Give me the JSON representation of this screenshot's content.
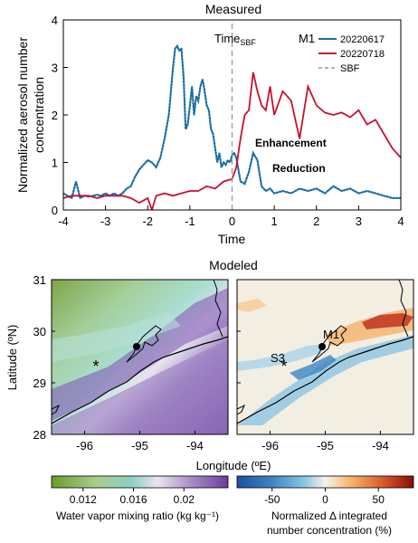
{
  "top_panel": {
    "title": "Measured",
    "ylabel_line1": "Normalized aerosol number",
    "ylabel_line2": "concentration",
    "xlabel": "Time",
    "time_label": "Time",
    "time_sub": "SBF",
    "site": "M1",
    "enhancement_label": "Enhancement",
    "reduction_label": "Reduction",
    "enhancement_color": "#c8102e",
    "reduction_color": "#1a6ea5"
  },
  "bottom_panels": {
    "title": "Modeled",
    "ylabel": "Latitude (ºN)",
    "xlabel": "Longitude (ºE)",
    "left": {
      "star_label": "",
      "cbar_ticks": [
        "0.012",
        "0.016",
        "0.02"
      ],
      "cbar_label": "Water vapor mixing ratio (kg kg⁻¹)",
      "cbar_colors": [
        "#6b9b2a",
        "#a9cd8a",
        "#8ccfc2",
        "#e9e4ef",
        "#a48ac4",
        "#6a3d9a"
      ]
    },
    "right": {
      "star_label": "S3",
      "dot_label": "M1",
      "cbar_ticks": [
        "-50",
        "0",
        "50"
      ],
      "cbar_label_line1": "Normalized Δ integrated",
      "cbar_label_line2": "number concentration (%)",
      "cbar_colors": [
        "#1f4e9c",
        "#3d86c4",
        "#8cc4e2",
        "#f5f2ea",
        "#f5b26b",
        "#d9582a",
        "#8b0a0a"
      ]
    }
  },
  "chart_data": [
    {
      "type": "line",
      "title": "Measured",
      "xlabel": "Time",
      "ylabel": "Normalized aerosol number concentration",
      "xlim": [
        -4,
        4
      ],
      "ylim": [
        0,
        4
      ],
      "xticks": [
        -4,
        -3,
        -2,
        -1,
        0,
        1,
        2,
        3,
        4
      ],
      "yticks": [
        0,
        1,
        2,
        3,
        4
      ],
      "legend_position": "top-right",
      "series": [
        {
          "name": "20220617",
          "style": "dotted",
          "color": "#1a6ea5",
          "x": [
            -4.0,
            -3.9,
            -3.8,
            -3.7,
            -3.6,
            -3.5,
            -3.4,
            -3.3,
            -3.2,
            -3.1,
            -3.0,
            -2.9,
            -2.8,
            -2.7,
            -2.6,
            -2.5,
            -2.4,
            -2.3,
            -2.2,
            -2.1,
            -2.0,
            -1.9,
            -1.8,
            -1.7,
            -1.6,
            -1.5,
            -1.4,
            -1.35,
            -1.3,
            -1.25,
            -1.2,
            -1.15,
            -1.1,
            -1.05,
            -1.0,
            -0.95,
            -0.9,
            -0.85,
            -0.8,
            -0.75,
            -0.7,
            -0.65,
            -0.6,
            -0.55,
            -0.5,
            -0.45,
            -0.4,
            -0.35,
            -0.3,
            -0.25,
            -0.2,
            -0.15,
            -0.1,
            -0.05,
            0.0,
            0.05,
            0.1,
            0.2,
            0.3,
            0.4,
            0.5,
            0.6,
            0.7,
            0.8,
            0.9,
            1.0,
            1.2,
            1.4,
            1.6,
            1.8,
            2.0,
            2.2,
            2.4,
            2.6,
            2.8,
            3.0,
            3.2,
            3.4,
            3.6,
            3.8,
            4.0
          ],
          "y": [
            0.35,
            0.3,
            0.25,
            0.6,
            0.25,
            0.3,
            0.28,
            0.3,
            0.32,
            0.3,
            0.35,
            0.3,
            0.35,
            0.3,
            0.35,
            0.45,
            0.5,
            0.7,
            0.85,
            0.95,
            1.05,
            1.0,
            0.9,
            1.1,
            1.5,
            2.0,
            3.0,
            3.4,
            3.45,
            3.35,
            3.4,
            2.8,
            1.7,
            1.8,
            2.2,
            2.6,
            2.0,
            2.4,
            2.3,
            2.6,
            2.75,
            2.5,
            2.2,
            2.1,
            1.7,
            1.6,
            1.3,
            1.0,
            1.2,
            0.9,
            1.0,
            0.95,
            1.05,
            1.0,
            1.15,
            1.2,
            1.1,
            0.6,
            0.55,
            0.8,
            1.2,
            1.05,
            0.5,
            0.4,
            0.45,
            0.35,
            0.4,
            0.35,
            0.45,
            0.4,
            0.45,
            0.35,
            0.5,
            0.4,
            0.45,
            0.35,
            0.4,
            0.35,
            0.3,
            0.25,
            0.25
          ]
        },
        {
          "name": "20220718",
          "style": "solid",
          "color": "#c8102e",
          "x": [
            -4.0,
            -3.8,
            -3.6,
            -3.4,
            -3.2,
            -3.0,
            -2.8,
            -2.6,
            -2.4,
            -2.2,
            -2.0,
            -1.9,
            -1.8,
            -1.6,
            -1.4,
            -1.2,
            -1.0,
            -0.8,
            -0.6,
            -0.4,
            -0.2,
            0.0,
            0.1,
            0.2,
            0.3,
            0.4,
            0.5,
            0.6,
            0.7,
            0.8,
            0.9,
            1.0,
            1.2,
            1.4,
            1.6,
            1.8,
            2.0,
            2.2,
            2.4,
            2.6,
            2.8,
            3.0,
            3.2,
            3.4,
            3.6,
            3.8,
            4.0
          ],
          "y": [
            0.25,
            0.3,
            0.3,
            0.3,
            0.25,
            0.3,
            0.3,
            0.3,
            0.25,
            0.15,
            0.25,
            0.0,
            0.3,
            0.35,
            0.3,
            0.35,
            0.4,
            0.4,
            0.5,
            0.45,
            0.6,
            0.65,
            0.9,
            1.5,
            2.0,
            2.1,
            2.9,
            2.5,
            2.2,
            2.1,
            2.6,
            2.0,
            2.5,
            2.3,
            1.5,
            2.6,
            2.2,
            2.05,
            2.0,
            2.05,
            1.95,
            2.1,
            1.8,
            1.9,
            1.6,
            1.3,
            1.1
          ]
        },
        {
          "name": "SBF",
          "style": "dashed",
          "color": "#999999",
          "x": [
            0,
            0
          ],
          "y": [
            0,
            4
          ]
        }
      ]
    },
    {
      "type": "heatmap",
      "title": "Modeled",
      "xlabel": "Longitude (ºE)",
      "ylabel": "Latitude (ºN)",
      "xticks": [
        -96,
        -95,
        -94
      ],
      "yticks": [
        28,
        29,
        30,
        31
      ],
      "colorbar_label": "Water vapor mixing ratio (kg kg-1)",
      "colorbar_ticks": [
        0.012,
        0.016,
        0.02
      ]
    },
    {
      "type": "heatmap",
      "xlabel": "Longitude (ºE)",
      "xticks": [
        -96,
        -95,
        -94
      ],
      "yticks": [
        28,
        29,
        30,
        31
      ],
      "colorbar_label": "Normalized Δ integrated number concentration (%)",
      "colorbar_ticks": [
        -50,
        0,
        50
      ]
    }
  ]
}
